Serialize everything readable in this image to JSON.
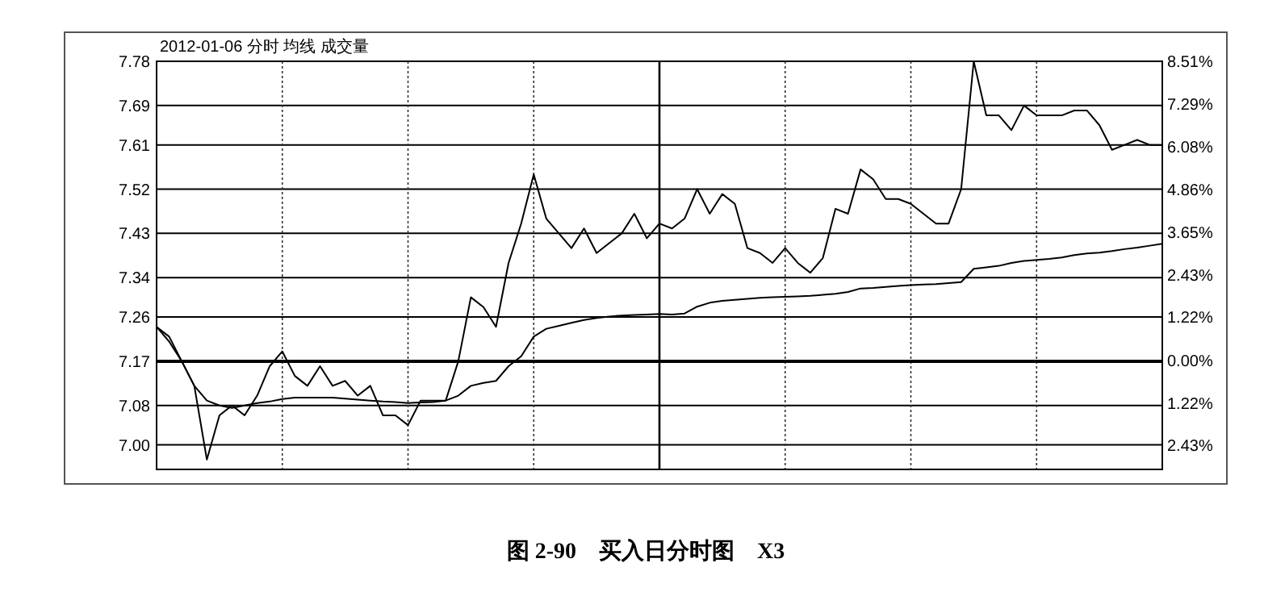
{
  "chart_data": {
    "type": "line",
    "title": "2012-01-06 分时 均线 成交量",
    "annotations": [
      "图 2-90    买入日分时图    X3"
    ],
    "categories": [
      null,
      null,
      null,
      null,
      null,
      null,
      null,
      null,
      null,
      null,
      null,
      null,
      null,
      null,
      null,
      null,
      null,
      null,
      null,
      null,
      null,
      null,
      null,
      null,
      null,
      null,
      null,
      null,
      null,
      null,
      null,
      null,
      null,
      null,
      null,
      null,
      null,
      null,
      null,
      null,
      null,
      null,
      null,
      null,
      null,
      null,
      null,
      null,
      null,
      null,
      null,
      null,
      null,
      null,
      null,
      null,
      null,
      null,
      null,
      null,
      null,
      null,
      null,
      null,
      null,
      null,
      null,
      null,
      null,
      null,
      null,
      null,
      null,
      null,
      null,
      null,
      null,
      null,
      null,
      null,
      null
    ],
    "ylim": [
      6.95,
      7.78
    ],
    "yticks": [
      {
        "value": 7.0,
        "label": "7.00"
      },
      7.08,
      7.17,
      7.26,
      7.34,
      7.43,
      7.52,
      7.61,
      7.69,
      7.78
    ],
    "y2lim": [
      -3.11,
      8.51
    ],
    "y2ticks": [
      {
        "value": -2.43,
        "label": "2.43%"
      },
      {
        "value": -1.22,
        "label": "1.22%"
      },
      {
        "value": 0,
        "label": "0.00%"
      },
      {
        "value": 1.22,
        "label": "1.22%"
      },
      {
        "value": 2.43,
        "label": "2.43%"
      },
      {
        "value": 3.65,
        "label": "3.65%"
      },
      {
        "value": 4.86,
        "label": "4.86%"
      },
      {
        "value": 6.08,
        "label": "6.08%"
      },
      {
        "value": 7.29,
        "label": "7.29%"
      },
      {
        "value": 8.51,
        "label": "8.51%"
      }
    ],
    "grid": true,
    "marker": "none",
    "line_style": "solid",
    "ref_lines": [
      {
        "axis": "y",
        "value": 7.17
      }
    ],
    "series": [
      {
        "color": "#000000",
        "values": [
          7.24,
          7.22,
          7.17,
          7.12,
          6.97,
          7.06,
          7.08,
          7.06,
          7.1,
          7.16,
          7.19,
          7.14,
          7.12,
          7.16,
          7.12,
          7.13,
          7.1,
          7.12,
          7.06,
          7.06,
          7.04,
          7.09,
          7.09,
          7.09,
          7.17,
          7.3,
          7.28,
          7.24,
          7.37,
          7.45,
          7.55,
          7.46,
          7.43,
          7.4,
          7.44,
          7.39,
          7.41,
          7.43,
          7.47,
          7.42,
          7.45,
          7.44,
          7.46,
          7.52,
          7.47,
          7.51,
          7.49,
          7.4,
          7.39,
          7.37,
          7.4,
          7.37,
          7.35,
          7.38,
          7.48,
          7.47,
          7.56,
          7.54,
          7.5,
          7.5,
          7.49,
          7.47,
          7.45,
          7.45,
          7.52,
          7.78,
          7.67,
          7.67,
          7.64,
          7.69,
          7.67,
          7.67,
          7.67,
          7.68,
          7.68,
          7.65,
          7.6,
          7.61,
          7.62,
          7.61,
          7.61
        ]
      },
      {
        "color": "#000000",
        "values": [
          7.24,
          7.21,
          7.17,
          7.12,
          7.09,
          7.08,
          7.075,
          7.08,
          7.085,
          7.088,
          7.093,
          7.096,
          7.096,
          7.096,
          7.096,
          7.094,
          7.092,
          7.09,
          7.088,
          7.087,
          7.085,
          7.086,
          7.087,
          7.09,
          7.1,
          7.12,
          7.126,
          7.13,
          7.16,
          7.18,
          7.22,
          7.236,
          7.242,
          7.248,
          7.254,
          7.258,
          7.261,
          7.263,
          7.264,
          7.265,
          7.266,
          7.265,
          7.267,
          7.281,
          7.289,
          7.293,
          7.295,
          7.297,
          7.299,
          7.3,
          7.301,
          7.302,
          7.303,
          7.305,
          7.307,
          7.311,
          7.318,
          7.319,
          7.321,
          7.323,
          7.325,
          7.326,
          7.327,
          7.329,
          7.331,
          7.358,
          7.361,
          7.364,
          7.37,
          7.374,
          7.376,
          7.378,
          7.381,
          7.386,
          7.389,
          7.391,
          7.394,
          7.398,
          7.401,
          7.405,
          7.409
        ]
      }
    ]
  }
}
